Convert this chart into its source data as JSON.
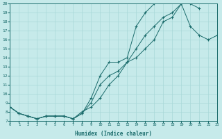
{
  "xlabel": "Humidex (Indice chaleur)",
  "xlim": [
    0,
    23
  ],
  "ylim": [
    7,
    20
  ],
  "xticks": [
    0,
    1,
    2,
    3,
    4,
    5,
    6,
    7,
    8,
    9,
    10,
    11,
    12,
    13,
    14,
    15,
    16,
    17,
    18,
    19,
    20,
    21,
    22,
    23
  ],
  "yticks": [
    7,
    8,
    9,
    10,
    11,
    12,
    13,
    14,
    15,
    16,
    17,
    18,
    19,
    20
  ],
  "bg_color": "#c6eaea",
  "line_color": "#1a6b6b",
  "grid_color": "#a8d8d8",
  "line1_y": [
    8.5,
    7.8,
    7.5,
    7.2,
    7.5,
    7.5,
    7.5,
    7.2,
    8.0,
    8.5,
    9.5,
    11.0,
    12.0,
    13.5,
    15.0,
    16.5,
    17.5,
    18.5,
    19.0,
    20.0,
    20.0,
    19.5,
    null,
    null
  ],
  "line2_y": [
    8.5,
    7.8,
    7.5,
    7.2,
    7.5,
    7.5,
    7.5,
    7.2,
    7.8,
    9.5,
    12.0,
    13.5,
    13.5,
    14.0,
    17.5,
    19.0,
    20.0,
    20.5,
    20.5,
    20.0,
    null,
    null,
    null,
    null
  ],
  "line3_y": [
    8.5,
    7.8,
    7.5,
    7.2,
    7.5,
    7.5,
    7.5,
    7.2,
    7.8,
    9.0,
    11.0,
    12.0,
    12.5,
    13.5,
    14.0,
    15.0,
    16.0,
    18.0,
    18.5,
    20.0,
    17.5,
    16.5,
    16.0,
    16.5
  ]
}
